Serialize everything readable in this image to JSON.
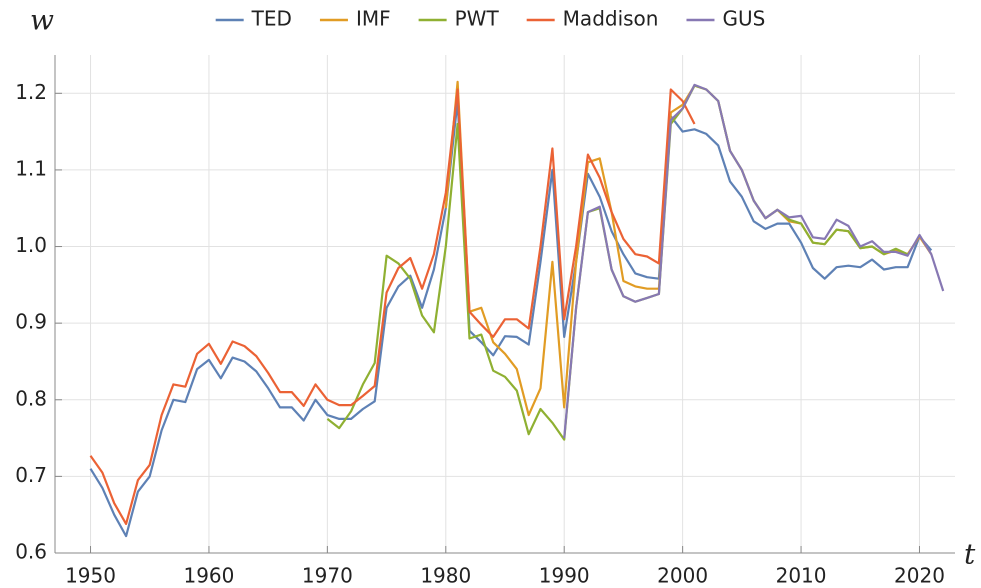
{
  "chart_data": {
    "type": "line",
    "ylabel": "w",
    "xlabel": "t",
    "x": [
      1950,
      1951,
      1952,
      1953,
      1954,
      1955,
      1956,
      1957,
      1958,
      1959,
      1960,
      1961,
      1962,
      1963,
      1964,
      1965,
      1966,
      1967,
      1968,
      1969,
      1970,
      1971,
      1972,
      1973,
      1974,
      1975,
      1976,
      1977,
      1978,
      1979,
      1980,
      1981,
      1982,
      1983,
      1984,
      1985,
      1986,
      1987,
      1988,
      1989,
      1990,
      1991,
      1992,
      1993,
      1994,
      1995,
      1996,
      1997,
      1998,
      1999,
      2000,
      2001,
      2002,
      2003,
      2004,
      2005,
      2006,
      2007,
      2008,
      2009,
      2010,
      2011,
      2012,
      2013,
      2014,
      2015,
      2016,
      2017,
      2018,
      2019,
      2020,
      2021,
      2022
    ],
    "series": [
      {
        "name": "TED",
        "color": "#5e81b5",
        "values": [
          0.71,
          0.685,
          0.65,
          0.622,
          0.68,
          0.7,
          0.76,
          0.8,
          0.797,
          0.84,
          0.852,
          0.828,
          0.855,
          0.85,
          0.837,
          0.815,
          0.79,
          0.79,
          0.773,
          0.8,
          0.78,
          0.775,
          0.775,
          0.788,
          0.798,
          0.92,
          0.948,
          0.962,
          0.92,
          0.97,
          1.05,
          1.19,
          0.89,
          0.875,
          0.858,
          0.883,
          0.882,
          0.872,
          0.98,
          1.1,
          0.882,
          0.98,
          1.095,
          1.065,
          1.02,
          0.99,
          0.965,
          0.96,
          0.958,
          1.17,
          1.15,
          1.153,
          1.147,
          1.132,
          1.085,
          1.065,
          1.033,
          1.023,
          1.03,
          1.03,
          1.005,
          0.972,
          0.958,
          0.973,
          0.975,
          0.973,
          0.983,
          0.97,
          0.973,
          0.973,
          1.013,
          0.995,
          null
        ]
      },
      {
        "name": "IMF",
        "color": "#e19c24",
        "values": [
          null,
          null,
          null,
          null,
          null,
          null,
          null,
          null,
          null,
          null,
          null,
          null,
          null,
          null,
          null,
          null,
          null,
          null,
          null,
          null,
          null,
          null,
          null,
          null,
          null,
          null,
          null,
          null,
          null,
          null,
          1.05,
          1.215,
          0.915,
          0.92,
          0.875,
          0.86,
          0.84,
          0.78,
          0.815,
          0.98,
          0.79,
          0.98,
          1.11,
          1.115,
          1.045,
          0.955,
          0.948,
          0.945,
          0.945,
          1.175,
          1.185,
          1.21,
          1.205,
          1.19,
          1.125,
          1.1,
          1.06,
          1.037,
          1.048,
          1.033,
          1.03,
          1.005,
          1.003,
          1.022,
          1.02,
          0.998,
          1.0,
          0.99,
          0.995,
          0.99,
          1.013,
          0.99,
          null
        ]
      },
      {
        "name": "PWT",
        "color": "#8fb032",
        "values": [
          null,
          null,
          null,
          null,
          null,
          null,
          null,
          null,
          null,
          null,
          null,
          null,
          null,
          null,
          null,
          null,
          null,
          null,
          null,
          null,
          0.775,
          0.763,
          0.785,
          0.82,
          0.848,
          0.988,
          0.978,
          0.958,
          0.91,
          0.888,
          1.0,
          1.16,
          0.88,
          0.885,
          0.838,
          0.83,
          0.812,
          0.755,
          0.788,
          0.77,
          0.748,
          0.92,
          1.045,
          1.05,
          0.97,
          0.935,
          0.928,
          0.933,
          0.938,
          1.16,
          1.18,
          1.21,
          1.205,
          1.19,
          1.125,
          1.1,
          1.06,
          1.037,
          1.048,
          1.035,
          1.03,
          1.005,
          1.003,
          1.022,
          1.02,
          0.998,
          1.0,
          0.99,
          0.997,
          0.99,
          null,
          null,
          null
        ]
      },
      {
        "name": "Maddison",
        "color": "#eb6235",
        "values": [
          0.727,
          0.705,
          0.665,
          0.638,
          0.695,
          0.715,
          0.78,
          0.82,
          0.817,
          0.86,
          0.873,
          0.847,
          0.876,
          0.87,
          0.857,
          0.835,
          0.81,
          0.81,
          0.792,
          0.82,
          0.8,
          0.793,
          0.793,
          0.805,
          0.818,
          0.94,
          0.972,
          0.985,
          0.945,
          0.99,
          1.07,
          1.205,
          0.915,
          0.898,
          0.882,
          0.905,
          0.905,
          0.893,
          1.0,
          1.128,
          0.905,
          1.0,
          1.12,
          1.09,
          1.045,
          1.01,
          0.99,
          0.987,
          0.978,
          1.205,
          1.19,
          1.16,
          null,
          null,
          null,
          null,
          null,
          null,
          null,
          null,
          null,
          null,
          null,
          null,
          null,
          null,
          null,
          null,
          null,
          null,
          null,
          null,
          null
        ]
      },
      {
        "name": "GUS",
        "color": "#8778b3",
        "values": [
          null,
          null,
          null,
          null,
          null,
          null,
          null,
          null,
          null,
          null,
          null,
          null,
          null,
          null,
          null,
          null,
          null,
          null,
          null,
          null,
          null,
          null,
          null,
          null,
          null,
          null,
          null,
          null,
          null,
          null,
          null,
          null,
          null,
          null,
          null,
          null,
          null,
          null,
          null,
          null,
          0.75,
          0.92,
          1.045,
          1.052,
          0.97,
          0.935,
          0.928,
          0.933,
          0.938,
          1.165,
          1.18,
          1.211,
          1.205,
          1.19,
          1.125,
          1.1,
          1.06,
          1.037,
          1.048,
          1.038,
          1.04,
          1.012,
          1.01,
          1.035,
          1.027,
          1.0,
          1.007,
          0.993,
          0.993,
          0.988,
          1.015,
          0.99,
          0.942
        ]
      }
    ],
    "xlim": [
      1947,
      2023
    ],
    "xticks": [
      1950,
      1960,
      1970,
      1980,
      1990,
      2000,
      2010,
      2020
    ],
    "ylim": [
      0.6,
      1.25
    ],
    "yticks": [
      0.6,
      0.7,
      0.8,
      0.9,
      {
        "value": 1.0,
        "label": "1.0"
      },
      1.1,
      1.2
    ],
    "grid": true,
    "legend": "top"
  }
}
